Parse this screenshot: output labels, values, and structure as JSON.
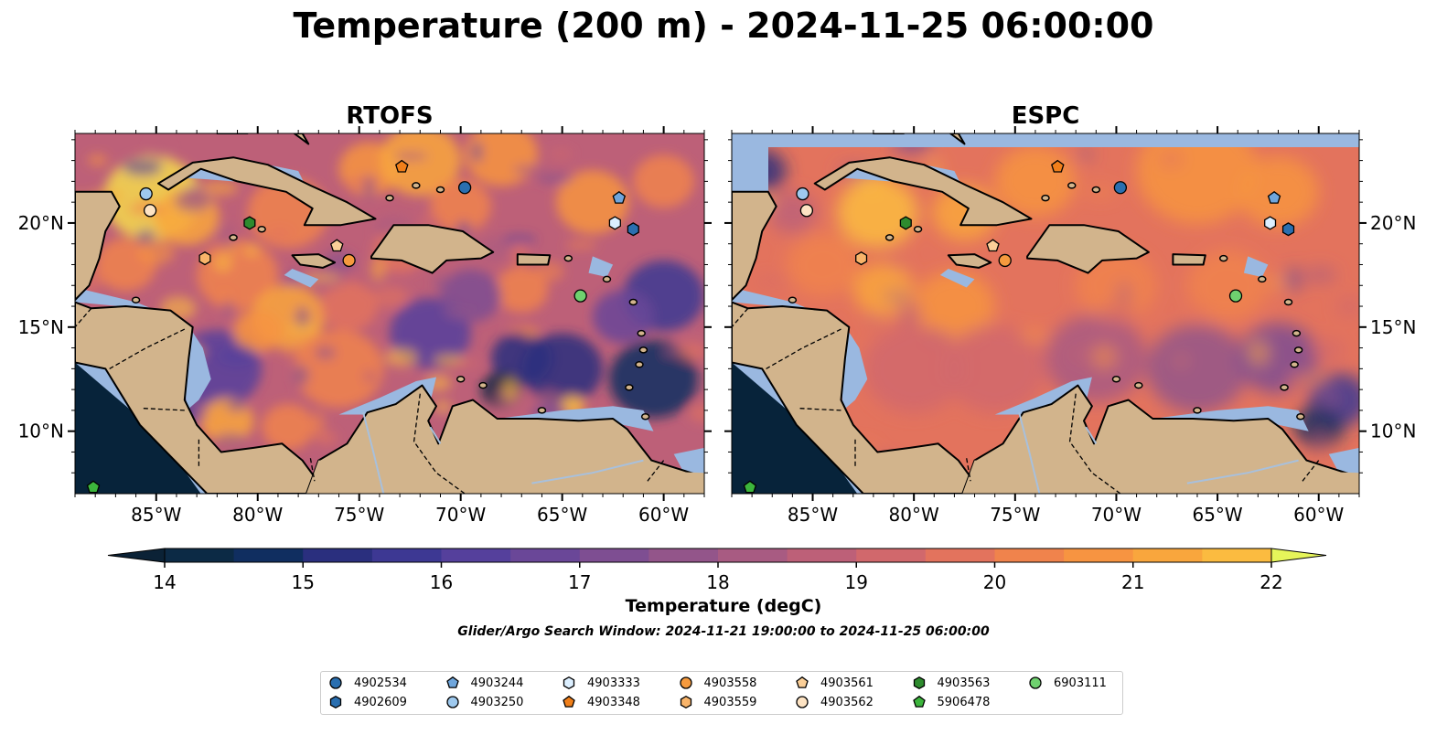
{
  "title": "Temperature (200 m) - 2024-11-25 06:00:00",
  "panels": [
    {
      "title": "RTOFS"
    },
    {
      "title": "ESPC"
    }
  ],
  "axes": {
    "lon_ticks": [
      {
        "label": "85°W",
        "value": -85
      },
      {
        "label": "80°W",
        "value": -80
      },
      {
        "label": "75°W",
        "value": -75
      },
      {
        "label": "70°W",
        "value": -70
      },
      {
        "label": "65°W",
        "value": -65
      },
      {
        "label": "60°W",
        "value": -60
      }
    ],
    "lat_ticks": [
      {
        "label": "20°N",
        "value": 20
      },
      {
        "label": "15°N",
        "value": 15
      },
      {
        "label": "10°N",
        "value": 10
      }
    ],
    "lon_range": [
      -89,
      -58
    ],
    "lat_range": [
      7,
      24.3
    ]
  },
  "colorbar": {
    "label": "Temperature (degC)",
    "ticks": [
      "14",
      "15",
      "16",
      "17",
      "18",
      "19",
      "20",
      "21",
      "22"
    ],
    "range": [
      14,
      22
    ],
    "colors": [
      "#0c2a45",
      "#102e60",
      "#2a2f7e",
      "#3d3893",
      "#55409c",
      "#6a4798",
      "#7e4e92",
      "#93558a",
      "#a85b82",
      "#bd6078",
      "#d1686c",
      "#e3735d",
      "#f0834c",
      "#f79441",
      "#f9a63d",
      "#fbbb40",
      "#f5d94c"
    ],
    "extend_low_color": "#0b2236",
    "extend_high_color": "#e6f55a"
  },
  "search_window": "Glider/Argo Search Window: 2024-11-21 19:00:00 to 2024-11-25 06:00:00",
  "colors": {
    "land": "#d2b48c",
    "shelf": "#9ab8e0",
    "deep_pacific": "#07233a"
  },
  "platforms": [
    {
      "id": "4902534",
      "marker": "circle",
      "color": "#2a6fb0",
      "lon": -69.8,
      "lat": 21.7
    },
    {
      "id": "4902609",
      "marker": "hexagon",
      "color": "#2a6fb0",
      "lon": -61.5,
      "lat": 19.7
    },
    {
      "id": "4903244",
      "marker": "pentagon",
      "color": "#6fa6dc",
      "lon": -62.2,
      "lat": 21.2
    },
    {
      "id": "4903250",
      "marker": "circle",
      "color": "#9ec9ee",
      "lon": -85.5,
      "lat": 21.4
    },
    {
      "id": "4903333",
      "marker": "hexagon",
      "color": "#dcefff",
      "lon": -62.4,
      "lat": 20.0
    },
    {
      "id": "4903348",
      "marker": "pentagon",
      "color": "#f07f1a",
      "lon": -72.9,
      "lat": 22.7
    },
    {
      "id": "4903558",
      "marker": "circle",
      "color": "#f59a3e",
      "lon": -75.5,
      "lat": 18.2
    },
    {
      "id": "4903559",
      "marker": "hexagon",
      "color": "#f8b46a",
      "lon": -82.6,
      "lat": 18.3
    },
    {
      "id": "4903561",
      "marker": "pentagon",
      "color": "#fbcf98",
      "lon": -76.1,
      "lat": 18.9
    },
    {
      "id": "4903562",
      "marker": "circle",
      "color": "#fde3c3",
      "lon": -85.3,
      "lat": 20.6
    },
    {
      "id": "4903563",
      "marker": "hexagon",
      "color": "#2e8b2e",
      "lon": -80.4,
      "lat": 20.0
    },
    {
      "id": "5906478",
      "marker": "pentagon",
      "color": "#3cb53c",
      "lon": -88.1,
      "lat": 7.3
    },
    {
      "id": "6903111",
      "marker": "circle",
      "color": "#6fd16f",
      "lon": -64.1,
      "lat": 16.5
    }
  ]
}
